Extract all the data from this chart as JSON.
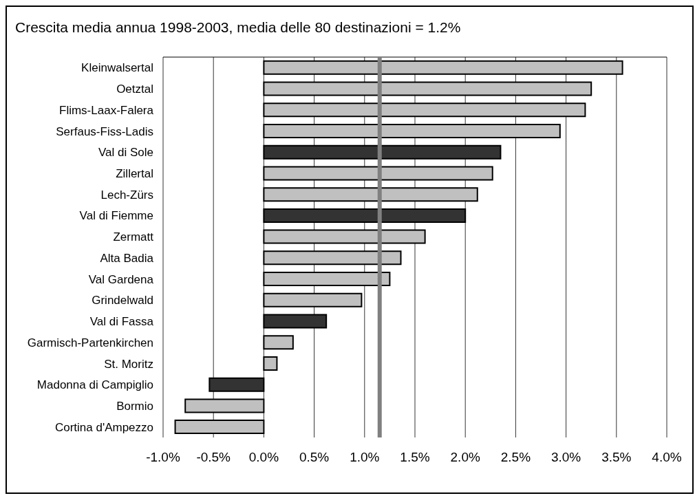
{
  "chart_data": {
    "type": "bar",
    "orientation": "horizontal",
    "subtitle": "Crescita media annua 1998-2003, media delle 80 destinazioni = 1.2%",
    "categories": [
      "Kleinwalsertal",
      "Oetztal",
      "Flims-Laax-Falera",
      "Serfaus-Fiss-Ladis",
      "Val di Sole",
      "Zillertal",
      "Lech-Zürs",
      "Val di Fiemme",
      "Zermatt",
      "Alta Badia",
      "Val Gardena",
      "Grindelwald",
      "Val di Fassa",
      "Garmisch-Partenkirchen",
      "St. Moritz",
      "Madonna di Campiglio",
      "Bormio",
      "Cortina d'Ampezzo"
    ],
    "values": [
      3.56,
      3.25,
      3.19,
      2.94,
      2.35,
      2.27,
      2.12,
      2.0,
      1.6,
      1.36,
      1.25,
      0.97,
      0.62,
      0.29,
      0.13,
      -0.54,
      -0.78,
      -0.88
    ],
    "colors": [
      "#c0c0c0",
      "#c0c0c0",
      "#c0c0c0",
      "#c0c0c0",
      "#333333",
      "#c0c0c0",
      "#c0c0c0",
      "#333333",
      "#c0c0c0",
      "#c0c0c0",
      "#c0c0c0",
      "#c0c0c0",
      "#333333",
      "#c0c0c0",
      "#c0c0c0",
      "#333333",
      "#c0c0c0",
      "#c0c0c0"
    ],
    "xlim": [
      -1,
      4
    ],
    "xticks": [
      {
        "value": -1,
        "label": "-1.0%"
      },
      {
        "value": -0.5,
        "label": "-0.5%"
      },
      {
        "value": 0,
        "label": "0.0%"
      },
      {
        "value": 0.5,
        "label": "0.5%"
      },
      {
        "value": 1,
        "label": "1.0%"
      },
      {
        "value": 1.5,
        "label": "1.5%"
      },
      {
        "value": 2,
        "label": "2.0%"
      },
      {
        "value": 2.5,
        "label": "2.5%"
      },
      {
        "value": 3,
        "label": "3.0%"
      },
      {
        "value": 3.5,
        "label": "3.5%"
      },
      {
        "value": 4,
        "label": "4.0%"
      }
    ],
    "grid": "x",
    "ref_lines": [
      {
        "axis": "x",
        "value": 1.15,
        "color": "#808080"
      }
    ]
  }
}
